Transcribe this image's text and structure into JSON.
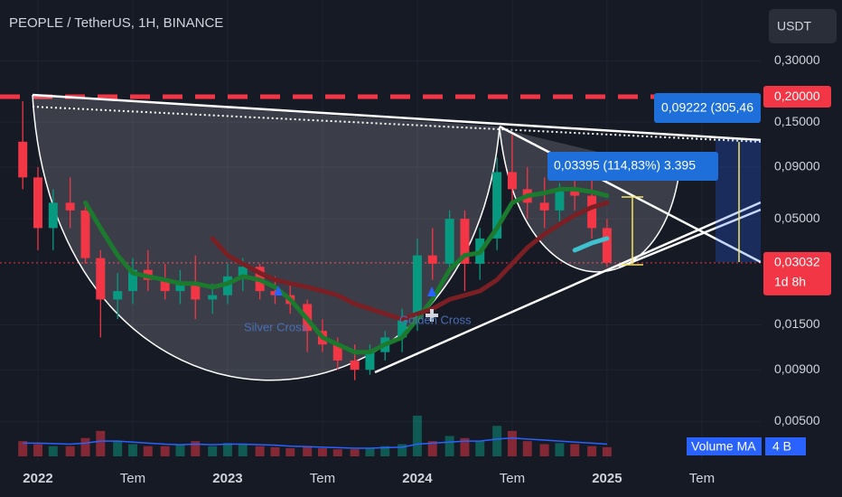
{
  "chart_data": {
    "type": "candlestick",
    "title": "PEOPLE / TetherUS, 1H, BINANCE",
    "currency": "USDT",
    "log_scale": true,
    "up_color": "#089981",
    "down_color": "#f23645",
    "x": [
      2021.92,
      2022.0,
      2022.08,
      2022.17,
      2022.25,
      2022.33,
      2022.42,
      2022.5,
      2022.58,
      2022.67,
      2022.75,
      2022.83,
      2022.92,
      2023.0,
      2023.08,
      2023.17,
      2023.25,
      2023.33,
      2023.42,
      2023.5,
      2023.58,
      2023.67,
      2023.75,
      2023.83,
      2023.92,
      2024.0,
      2024.08,
      2024.17,
      2024.25,
      2024.33,
      2024.42,
      2024.5,
      2024.58,
      2024.67,
      2024.75,
      2024.83,
      2024.92,
      2025.0
    ],
    "open": [
      0.12,
      0.08,
      0.045,
      0.06,
      0.055,
      0.032,
      0.02,
      0.022,
      0.028,
      0.025,
      0.022,
      0.024,
      0.02,
      0.021,
      0.026,
      0.029,
      0.022,
      0.021,
      0.019,
      0.014,
      0.012,
      0.01,
      0.009,
      0.011,
      0.013,
      0.016,
      0.033,
      0.03,
      0.05,
      0.03,
      0.04,
      0.085,
      0.07,
      0.06,
      0.055,
      0.07,
      0.065,
      0.045
    ],
    "high": [
      0.19,
      0.09,
      0.07,
      0.08,
      0.06,
      0.035,
      0.027,
      0.032,
      0.035,
      0.03,
      0.028,
      0.033,
      0.024,
      0.03,
      0.032,
      0.03,
      0.026,
      0.024,
      0.02,
      0.016,
      0.013,
      0.012,
      0.012,
      0.014,
      0.018,
      0.04,
      0.045,
      0.055,
      0.055,
      0.045,
      0.1,
      0.13,
      0.09,
      0.08,
      0.075,
      0.085,
      0.08,
      0.05
    ],
    "low": [
      0.07,
      0.035,
      0.035,
      0.045,
      0.03,
      0.013,
      0.016,
      0.019,
      0.022,
      0.02,
      0.019,
      0.016,
      0.017,
      0.019,
      0.022,
      0.02,
      0.019,
      0.017,
      0.011,
      0.011,
      0.009,
      0.008,
      0.0085,
      0.01,
      0.011,
      0.014,
      0.025,
      0.028,
      0.022,
      0.025,
      0.035,
      0.06,
      0.05,
      0.045,
      0.048,
      0.055,
      0.04,
      0.029
    ],
    "close": [
      0.08,
      0.045,
      0.06,
      0.055,
      0.032,
      0.02,
      0.022,
      0.028,
      0.025,
      0.022,
      0.024,
      0.02,
      0.021,
      0.026,
      0.029,
      0.022,
      0.021,
      0.019,
      0.014,
      0.012,
      0.01,
      0.009,
      0.011,
      0.013,
      0.016,
      0.033,
      0.03,
      0.05,
      0.03,
      0.04,
      0.085,
      0.07,
      0.06,
      0.055,
      0.07,
      0.065,
      0.045,
      0.03032
    ],
    "moving_averages": [
      {
        "color": "#1b7a2e",
        "values": [
          null,
          null,
          null,
          null,
          0.06,
          0.045,
          0.033,
          0.027,
          0.026,
          0.025,
          0.024,
          0.024,
          0.023,
          0.024,
          0.026,
          0.025,
          0.023,
          0.02,
          0.016,
          0.013,
          0.012,
          0.011,
          0.011,
          0.012,
          0.013,
          0.016,
          0.02,
          0.028,
          0.033,
          0.034,
          0.045,
          0.06,
          0.065,
          0.067,
          0.07,
          0.07,
          0.068,
          0.065
        ]
      },
      {
        "color": "#7a1f24",
        "values": [
          null,
          null,
          null,
          null,
          null,
          null,
          null,
          null,
          null,
          null,
          null,
          null,
          0.04,
          0.033,
          0.03,
          0.027,
          0.025,
          0.024,
          0.023,
          0.022,
          0.021,
          0.019,
          0.018,
          0.017,
          0.016,
          0.017,
          0.018,
          0.02,
          0.021,
          0.022,
          0.025,
          0.03,
          0.036,
          0.042,
          0.047,
          0.052,
          0.057,
          0.06
        ]
      },
      {
        "color": "#3fc1d0",
        "values": [
          null,
          null,
          null,
          null,
          null,
          null,
          null,
          null,
          null,
          null,
          null,
          null,
          null,
          null,
          null,
          null,
          null,
          null,
          null,
          null,
          null,
          null,
          null,
          null,
          null,
          null,
          null,
          null,
          null,
          null,
          null,
          null,
          null,
          null,
          null,
          0.035,
          0.038,
          0.04
        ]
      }
    ],
    "ylim": [
      0.0032,
      0.6
    ],
    "yticks": [
      {
        "value": 0.3,
        "label": "0,30000"
      },
      {
        "value": 0.15,
        "label": "0,15000"
      },
      {
        "value": 0.09,
        "label": "0,09000"
      },
      {
        "value": 0.05,
        "label": "0,05000"
      },
      {
        "value": 0.015,
        "label": "0,01500"
      },
      {
        "value": 0.009,
        "label": "0,00900"
      },
      {
        "value": 0.005,
        "label": "0,00500"
      }
    ],
    "xlim": [
      2021.8,
      2025.81
    ],
    "xticks": [
      {
        "value": 2022,
        "label": "2022"
      },
      {
        "value": 2022.5,
        "label": "Tem"
      },
      {
        "value": 2023,
        "label": "2023"
      },
      {
        "value": 2023.5,
        "label": "Tem"
      },
      {
        "value": 2024,
        "label": "2024"
      },
      {
        "value": 2024.5,
        "label": "Tem"
      },
      {
        "value": 2025,
        "label": "2025"
      },
      {
        "value": 2025.5,
        "label": "Tem"
      }
    ],
    "price_lines": [
      {
        "value": 0.2,
        "label": "0,20000",
        "color": "#f23645"
      },
      {
        "value": 0.03032,
        "label": "0,03032",
        "color": "#f23645"
      }
    ],
    "countdown": "1d 8h",
    "volume": {
      "values": [
        1.5,
        1.2,
        1,
        1,
        1.8,
        2.5,
        1.5,
        1.2,
        1,
        1,
        1.2,
        1.5,
        1,
        1.3,
        1.2,
        1,
        0.9,
        0.8,
        1,
        0.8,
        0.7,
        0.7,
        0.8,
        1,
        1.2,
        4,
        1.5,
        2,
        1.8,
        1.5,
        3,
        2.5,
        1.5,
        1.2,
        1.3,
        1.2,
        1,
        0.9
      ],
      "ma_values": [
        1.3,
        1.3,
        1.25,
        1.2,
        1.3,
        1.5,
        1.5,
        1.4,
        1.3,
        1.2,
        1.15,
        1.2,
        1.15,
        1.2,
        1.2,
        1.15,
        1.1,
        1.0,
        0.95,
        0.9,
        0.85,
        0.8,
        0.8,
        0.85,
        0.9,
        1.2,
        1.3,
        1.4,
        1.5,
        1.5,
        1.7,
        1.8,
        1.7,
        1.6,
        1.5,
        1.4,
        1.3,
        1.2
      ],
      "ma_color": "#2962ff",
      "legend": "Volume MA",
      "legend_value": "4 B"
    },
    "annotations": [
      "Silver Cross",
      "Golden Cross"
    ],
    "measurements": [
      "0,09222 (305,46",
      "0,03395 (114,83%) 3.395"
    ]
  }
}
